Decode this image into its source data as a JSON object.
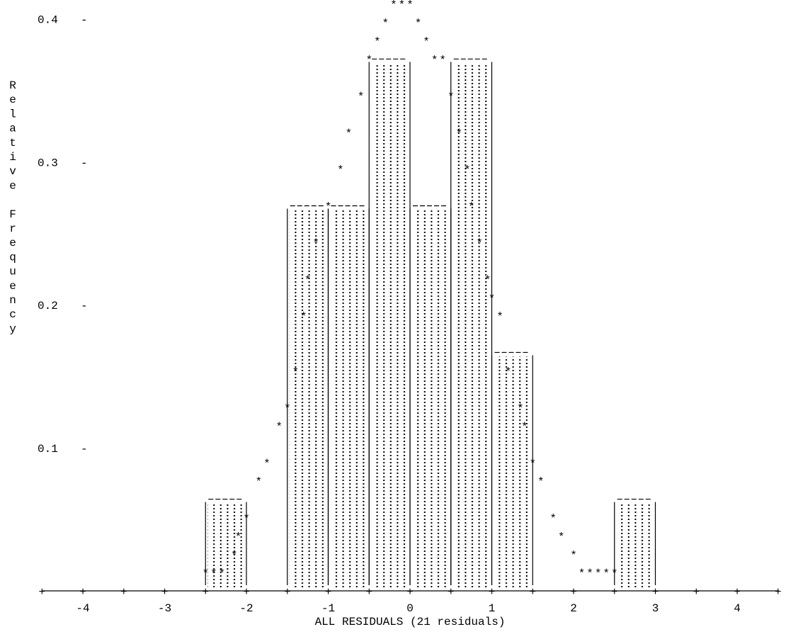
{
  "chart_data": {
    "type": "bar",
    "style": "ascii-text-histogram",
    "title": "",
    "xlabel": "ALL RESIDUALS (21 residuals)",
    "ylabel": "Relative Frequency",
    "xlim": [
      -4.5,
      4.5
    ],
    "ylim": [
      0,
      0.4
    ],
    "x_ticks": [
      "-4",
      "-3",
      "-2",
      "-1",
      "0",
      "1",
      "2",
      "3",
      "4"
    ],
    "y_ticks": [
      "0.4",
      "0.3",
      "0.2",
      "0.1"
    ],
    "bars": [
      {
        "x0": -2.5,
        "x1": -2.0,
        "value": 0.0641
      },
      {
        "x0": -1.5,
        "x1": -1.0,
        "value": 0.2692
      },
      {
        "x0": -1.0,
        "x1": -0.5,
        "value": 0.2692
      },
      {
        "x0": -0.5,
        "x1": 0.0,
        "value": 0.3718
      },
      {
        "x0": 0.0,
        "x1": 0.5,
        "value": 0.2692
      },
      {
        "x0": 0.5,
        "x1": 1.0,
        "value": 0.3718
      },
      {
        "x0": 1.0,
        "x1": 1.5,
        "value": 0.1667
      },
      {
        "x0": 2.5,
        "x1": 3.0,
        "value": 0.0641
      }
    ],
    "density_curve": {
      "marker": "*",
      "x": [
        -2.5,
        -2.4,
        -2.3,
        -2.15,
        -2.1,
        -2.0,
        -1.85,
        -1.75,
        -1.6,
        -1.5,
        -1.4,
        -1.3,
        -1.25,
        -1.15,
        -1.0,
        -0.85,
        -0.75,
        -0.6,
        -0.5,
        -0.4,
        -0.3,
        -0.2,
        -0.1,
        0.0,
        0.1,
        0.2,
        0.3,
        0.4,
        0.5,
        0.6,
        0.7,
        0.75,
        0.85,
        0.95,
        1.0,
        1.1,
        1.2,
        1.35,
        1.4,
        1.5,
        1.6,
        1.75,
        1.85,
        2.0,
        2.1,
        2.2,
        2.3,
        2.4,
        2.5
      ],
      "y": [
        0.0128,
        0.0128,
        0.0128,
        0.0256,
        0.0385,
        0.0513,
        0.0769,
        0.0897,
        0.1154,
        0.1282,
        0.1538,
        0.1923,
        0.2179,
        0.2436,
        0.2692,
        0.2949,
        0.3205,
        0.3462,
        0.3718,
        0.3846,
        0.3974,
        0.4103,
        0.4103,
        0.4103,
        0.3974,
        0.3846,
        0.3718,
        0.3718,
        0.3462,
        0.3205,
        0.2949,
        0.2692,
        0.2436,
        0.2179,
        0.2051,
        0.1923,
        0.1538,
        0.1282,
        0.1154,
        0.0897,
        0.0769,
        0.0513,
        0.0385,
        0.0256,
        0.0128,
        0.0128,
        0.0128,
        0.0128,
        0.0128
      ]
    }
  }
}
